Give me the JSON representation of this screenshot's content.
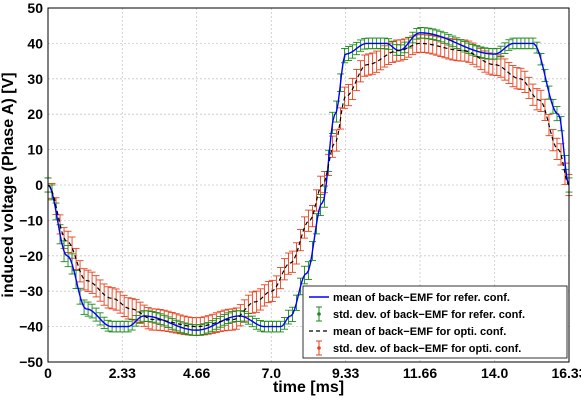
{
  "chart_data": {
    "type": "line",
    "xlabel": "time [ms]",
    "ylabel": "induced voltage (Phase A) [V]",
    "xlim": [
      0,
      16.33
    ],
    "ylim": [
      -50,
      50
    ],
    "grid": true,
    "legend_position": "bottom-right",
    "x_ticks": [
      "0",
      "2.33",
      "4.66",
      "7.0",
      "9.33",
      "11.66",
      "14.0",
      "16.33"
    ],
    "x_tick_values": [
      0,
      2.33,
      4.66,
      7.0,
      9.33,
      11.66,
      14.0,
      16.33
    ],
    "y_ticks": [
      "50",
      "40",
      "30",
      "20",
      "10",
      "0",
      "−10",
      "−20",
      "−30",
      "−40",
      "−50"
    ],
    "y_tick_values": [
      50,
      40,
      30,
      20,
      10,
      0,
      -10,
      -20,
      -30,
      -40,
      -50
    ],
    "series": [
      {
        "name": "mean of back−EMF for refer. conf.",
        "style": "solid-line",
        "color": "#0000ff",
        "x": [
          0,
          0.6,
          1.2,
          2.0,
          2.5,
          3.0,
          4.66,
          6.0,
          6.8,
          7.3,
          7.6,
          8.1,
          8.6,
          9.0,
          9.33,
          10.0,
          10.6,
          11.0,
          11.66,
          14.0,
          14.6,
          15.2,
          16.0,
          16.33
        ],
        "values": [
          0,
          -20,
          -35,
          -40,
          -40,
          -37,
          -41,
          -37,
          -40,
          -40,
          -37,
          -25,
          -5,
          20,
          37,
          40,
          40,
          38,
          43,
          37,
          40,
          40,
          20,
          0
        ],
        "std": [
          2,
          3,
          2,
          1.5,
          1.5,
          1.5,
          1.5,
          1.5,
          1.5,
          1.5,
          2,
          2.5,
          3,
          3,
          2,
          1.5,
          1.5,
          1.5,
          1.5,
          1.5,
          1.5,
          1.5,
          2,
          2
        ]
      },
      {
        "name": "mean of back−EMF for opti. conf.",
        "style": "dashed-line",
        "color": "#000000",
        "x": [
          0,
          0.6,
          1.2,
          2.0,
          2.6,
          3.3,
          4.66,
          5.8,
          6.5,
          7.0,
          7.6,
          8.2,
          8.6,
          9.0,
          9.33,
          10.0,
          11.0,
          11.66,
          13.0,
          14.0,
          14.8,
          15.4,
          16.0,
          16.33
        ],
        "values": [
          0,
          -16,
          -27,
          -32,
          -35,
          -38,
          -40,
          -38,
          -33,
          -30,
          -22,
          -10,
          0,
          12,
          25,
          34,
          38,
          40,
          38,
          34,
          30,
          24,
          10,
          0
        ],
        "std": [
          2,
          3,
          3,
          3,
          3,
          3,
          2.5,
          3,
          3,
          3,
          3,
          3,
          3,
          3,
          3,
          3,
          3,
          2.5,
          3,
          3,
          3,
          3,
          3,
          3
        ]
      }
    ],
    "legend": [
      {
        "label": "mean of back−EMF for refer. conf.",
        "symbol": "blue-line"
      },
      {
        "label": "std. dev. of back−EMF for refer. conf.",
        "symbol": "green-errorbar"
      },
      {
        "label": "mean of back−EMF for opti. conf.",
        "symbol": "black-dashed-line"
      },
      {
        "label": "std. dev. of back−EMF for opti. conf.",
        "symbol": "red-errorbar"
      }
    ],
    "colors": {
      "refer_mean": "#0000ff",
      "refer_std": "#1a8a1a",
      "opti_mean": "#000000",
      "opti_std": "#e8401c"
    }
  }
}
